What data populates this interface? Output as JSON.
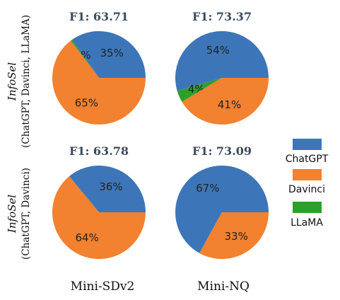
{
  "chart_data": [
    {
      "type": "pie",
      "title": "F1: 63.71",
      "row": 0,
      "col": 0,
      "slices": [
        {
          "label": "ChatGPT",
          "value": 35,
          "text": "35%",
          "color": "#3d76b8"
        },
        {
          "label": "LLaMA",
          "value": 0.5,
          "text": "0%",
          "color": "#2ca02c"
        },
        {
          "label": "Davinci",
          "value": 65,
          "text": "65%",
          "color": "#f28130"
        }
      ]
    },
    {
      "type": "pie",
      "title": "F1: 73.37",
      "row": 0,
      "col": 1,
      "slices": [
        {
          "label": "ChatGPT",
          "value": 54,
          "text": "54%",
          "color": "#3d76b8"
        },
        {
          "label": "LLaMA",
          "value": 4,
          "text": "4%",
          "color": "#2ca02c"
        },
        {
          "label": "Davinci",
          "value": 41,
          "text": "41%",
          "color": "#f28130"
        }
      ]
    },
    {
      "type": "pie",
      "title": "F1: 63.78",
      "row": 1,
      "col": 0,
      "slices": [
        {
          "label": "ChatGPT",
          "value": 36,
          "text": "36%",
          "color": "#3d76b8"
        },
        {
          "label": "Davinci",
          "value": 64,
          "text": "64%",
          "color": "#f28130"
        }
      ]
    },
    {
      "type": "pie",
      "title": "F1: 73.09",
      "row": 1,
      "col": 1,
      "slices": [
        {
          "label": "ChatGPT",
          "value": 67,
          "text": "67%",
          "color": "#3d76b8"
        },
        {
          "label": "Davinci",
          "value": 33,
          "text": "33%",
          "color": "#f28130"
        }
      ]
    }
  ],
  "row_labels": [
    {
      "italic": "InfoSel",
      "sub": "(ChatGPT, Davinci, LLaMA)"
    },
    {
      "italic": "InfoSel",
      "sub": "(ChatGPT, Davinci)"
    }
  ],
  "column_labels": [
    "Mini-SDv2",
    "Mini-NQ"
  ],
  "legend": [
    {
      "label": "ChatGPT",
      "color": "#3d76b8"
    },
    {
      "label": "Davinci",
      "color": "#f28130"
    },
    {
      "label": "LLaMA",
      "color": "#2ca02c"
    }
  ]
}
